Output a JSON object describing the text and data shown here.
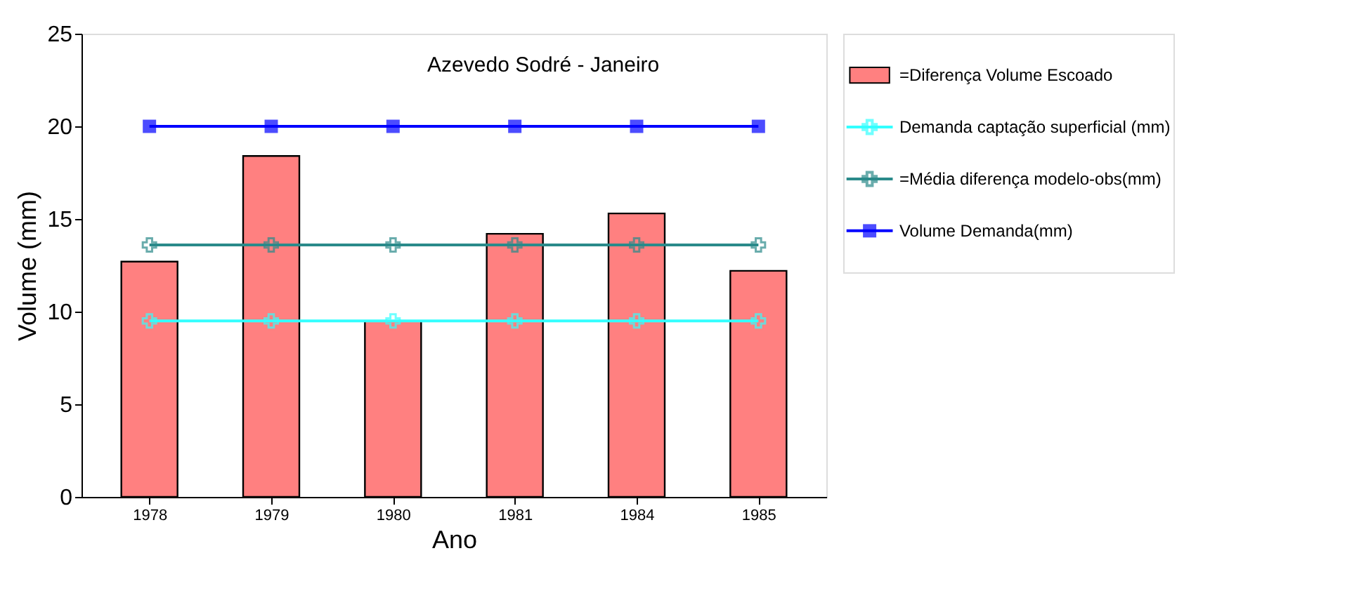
{
  "chart_data": {
    "type": "bar",
    "title": "Azevedo Sodré - Janeiro",
    "xlabel": "Ano",
    "ylabel": "Volume (mm)",
    "categories": [
      "1978",
      "1979",
      "1980",
      "1981",
      "1984",
      "1985"
    ],
    "series": [
      {
        "name": "=Diferença Volume Escoado",
        "color": "#ff8080",
        "values": [
          12.7,
          18.4,
          9.5,
          14.2,
          15.3,
          12.2
        ]
      },
      {
        "name": "Demanda captação superficial (mm)",
        "type": "line",
        "color": "#33ffff",
        "marker": "cross",
        "values": [
          9.5,
          9.5,
          9.5,
          9.5,
          9.5,
          9.5
        ]
      },
      {
        "name": "=Média diferença modelo-obs(mm)",
        "type": "line",
        "color": "#2a8a8a",
        "marker": "cross",
        "values": [
          13.6,
          13.6,
          13.6,
          13.6,
          13.6,
          13.6
        ]
      },
      {
        "name": "Volume Demanda(mm)",
        "type": "line",
        "color": "#0000ff",
        "marker": "square",
        "values": [
          20,
          20,
          20,
          20,
          20,
          20
        ]
      }
    ],
    "ylim": [
      0,
      25
    ],
    "yticks": [
      0,
      5,
      10,
      15,
      20,
      25
    ],
    "grid": false,
    "legend": "right"
  }
}
